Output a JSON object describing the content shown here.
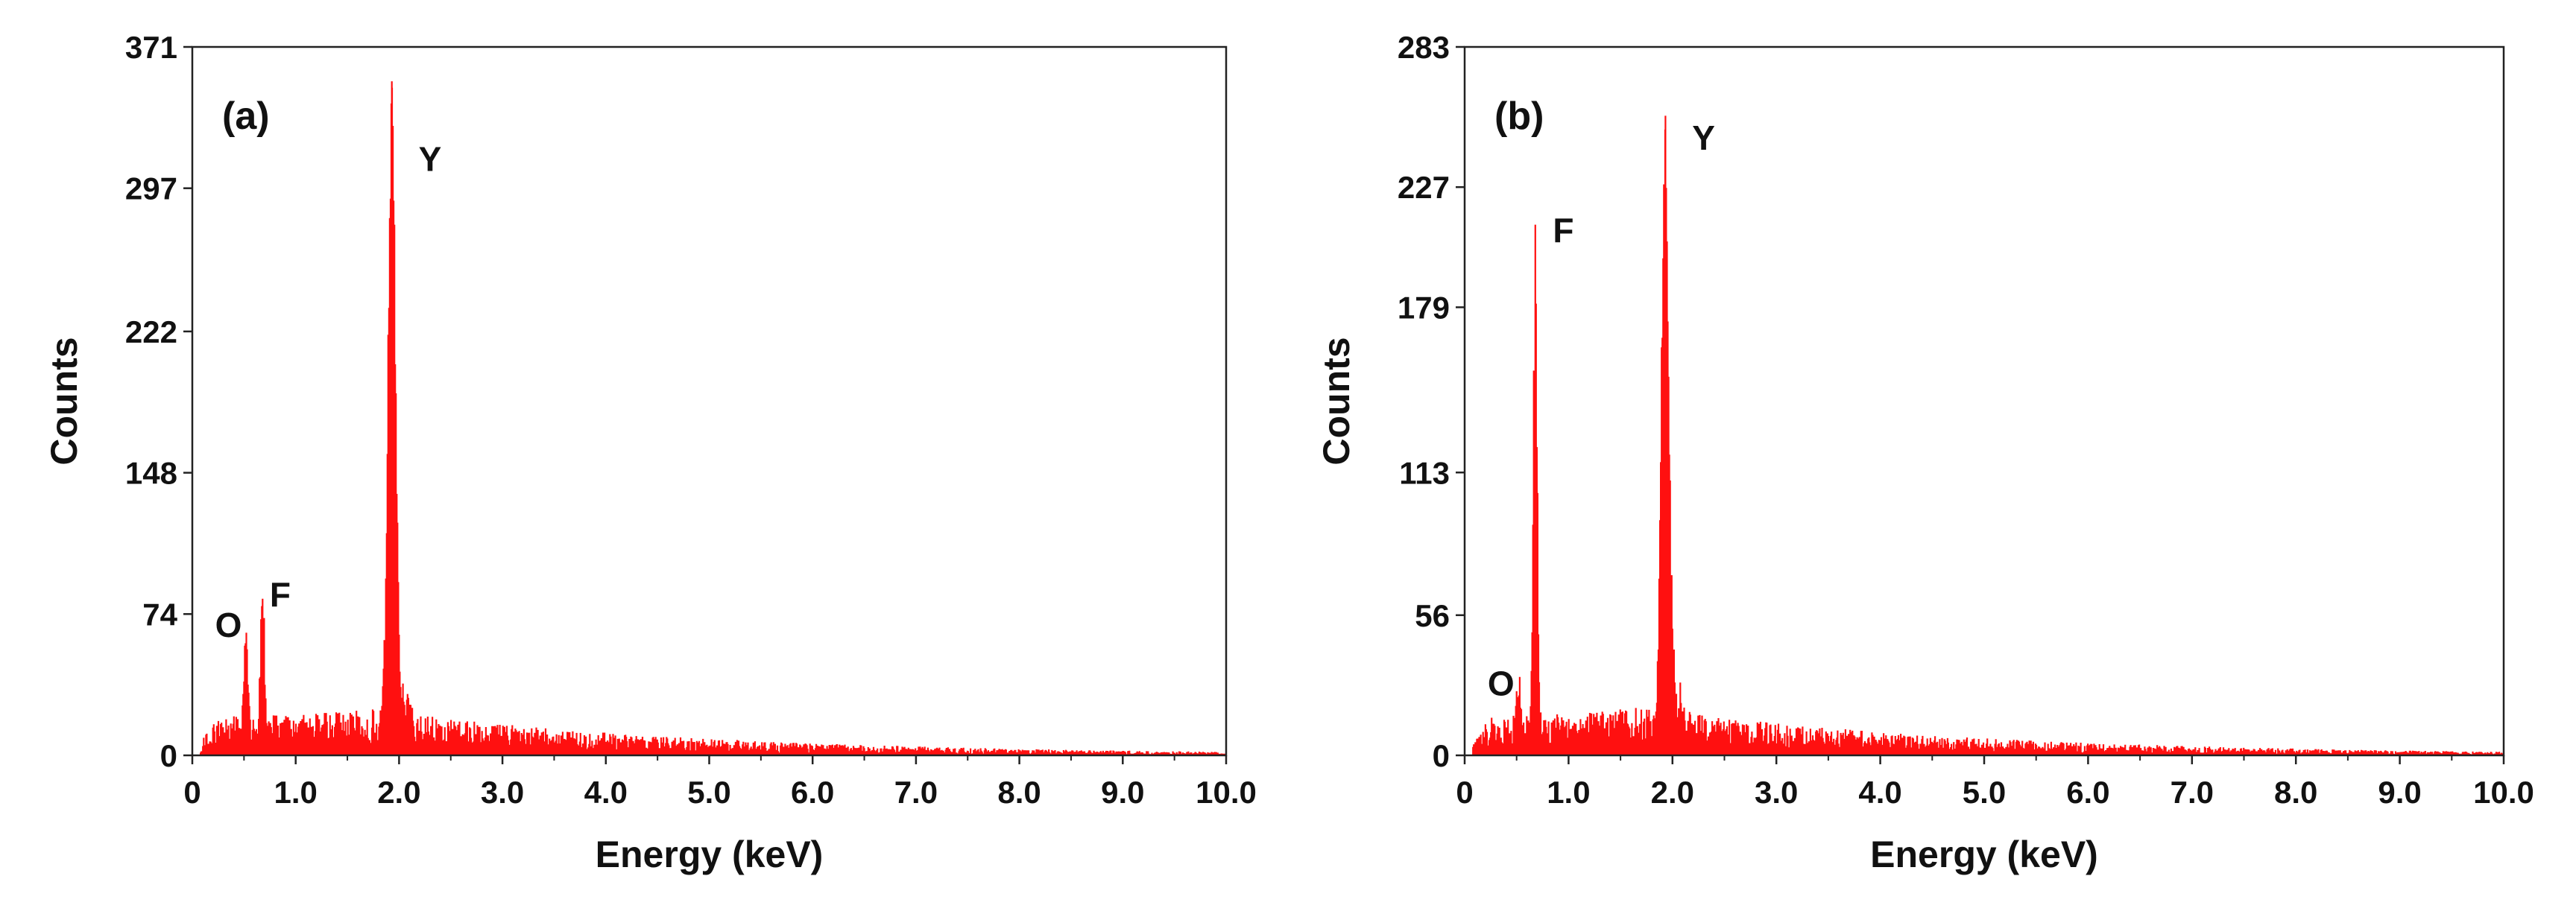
{
  "colors": {
    "spectrum": "#ff1010",
    "axis": "#222222",
    "background": "#ffffff"
  },
  "chart_data": [
    {
      "type": "bar",
      "panel_label": "(a)",
      "title": "",
      "xlabel": "Energy (keV)",
      "ylabel": "Counts",
      "xlim": [
        0,
        10.0
      ],
      "ylim": [
        0,
        371
      ],
      "x_ticks": [
        0,
        1.0,
        2.0,
        3.0,
        4.0,
        5.0,
        6.0,
        7.0,
        8.0,
        9.0,
        10.0
      ],
      "x_tick_labels": [
        "0",
        "1.0",
        "2.0",
        "3.0",
        "4.0",
        "5.0",
        "6.0",
        "7.0",
        "8.0",
        "9.0",
        "10.0"
      ],
      "y_ticks": [
        0,
        74,
        148,
        222,
        297,
        371
      ],
      "y_tick_labels": [
        "0",
        "74",
        "148",
        "222",
        "297",
        "371"
      ],
      "background_level": 14,
      "peaks": [
        {
          "element": "O",
          "energy": 0.52,
          "counts": 58,
          "label_energy": 0.35,
          "label_counts": 62
        },
        {
          "element": "F",
          "energy": 0.68,
          "counts": 82,
          "label_energy": 0.85,
          "label_counts": 78
        },
        {
          "element": "Y",
          "energy": 1.93,
          "counts": 353,
          "label_energy": 2.3,
          "label_counts": 306
        }
      ]
    },
    {
      "type": "bar",
      "panel_label": "(b)",
      "title": "",
      "xlabel": "Energy (keV)",
      "ylabel": "Counts",
      "xlim": [
        0,
        10.0
      ],
      "ylim": [
        0,
        283
      ],
      "x_ticks": [
        0,
        1.0,
        2.0,
        3.0,
        4.0,
        5.0,
        6.0,
        7.0,
        8.0,
        9.0,
        10.0
      ],
      "x_tick_labels": [
        "0",
        "1.0",
        "2.0",
        "3.0",
        "4.0",
        "5.0",
        "6.0",
        "7.0",
        "8.0",
        "9.0",
        "10.0"
      ],
      "y_ticks": [
        0,
        56,
        113,
        179,
        227,
        283
      ],
      "y_tick_labels": [
        "0",
        "56",
        "113",
        "179",
        "227",
        "283"
      ],
      "background_level": 11,
      "peaks": [
        {
          "element": "O",
          "energy": 0.52,
          "counts": 22,
          "label_energy": 0.35,
          "label_counts": 24
        },
        {
          "element": "F",
          "energy": 0.68,
          "counts": 212,
          "label_energy": 0.95,
          "label_counts": 205
        },
        {
          "element": "Y",
          "energy": 1.93,
          "counts": 250,
          "label_energy": 2.3,
          "label_counts": 242
        }
      ]
    }
  ]
}
